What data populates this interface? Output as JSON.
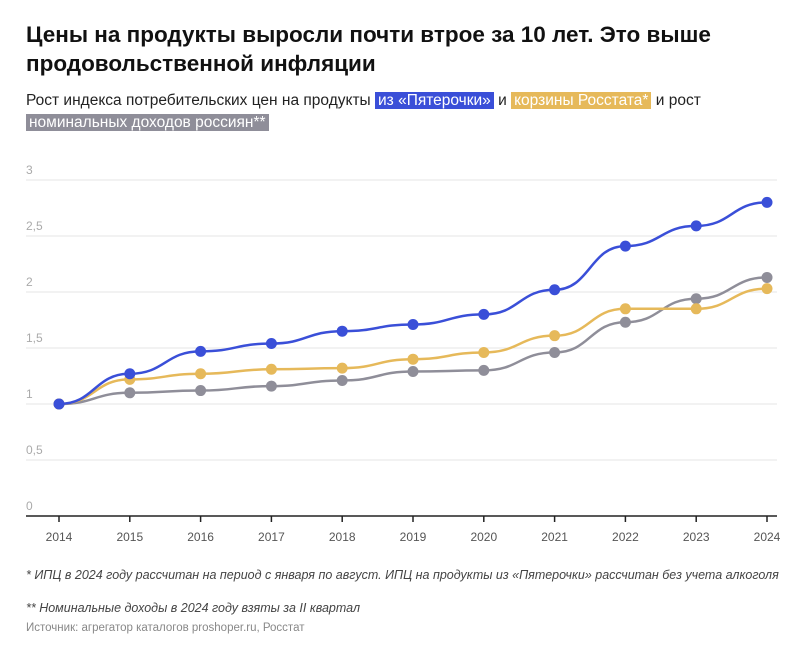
{
  "title": "Цены на продукты выросли почти втрое за 10 лет. Это выше продовольственной инфляции",
  "subtitle": {
    "part1": "Рост индекса потребительских цен на продукты ",
    "hl1": "из «Пятерочки»",
    "part2": " и ",
    "hl2": "корзины Росстата*",
    "part3": " и рост ",
    "hl3": "номинальных доходов россиян**"
  },
  "notes": {
    "n1": "* ИПЦ в 2024 году рассчитан на период с января по август. ИПЦ на продукты из «Пятерочки» рассчитан без учета алкоголя",
    "n2": "** Номинальные доходы в 2024 году взяты за II квартал",
    "source": "Источник: агрегатор каталогов proshoper.ru, Росстат"
  },
  "chart_data": {
    "type": "line",
    "categories": [
      "2014",
      "2015",
      "2016",
      "2017",
      "2018",
      "2019",
      "2020",
      "2021",
      "2022",
      "2023",
      "2024"
    ],
    "y_ticks": [
      "0",
      "0,5",
      "1",
      "1,5",
      "2",
      "2,5",
      "3"
    ],
    "ylim": [
      0,
      3
    ],
    "grid": true,
    "series": [
      {
        "name": "из «Пятерочки»",
        "color": "#3a4fd8",
        "values": [
          1.0,
          1.27,
          1.47,
          1.54,
          1.65,
          1.71,
          1.8,
          2.02,
          2.41,
          2.59,
          2.8
        ]
      },
      {
        "name": "корзины Росстата*",
        "color": "#e6b95a",
        "values": [
          1.0,
          1.22,
          1.27,
          1.31,
          1.32,
          1.4,
          1.46,
          1.61,
          1.85,
          1.85,
          2.03
        ]
      },
      {
        "name": "номинальных доходов россиян**",
        "color": "#8f8e99",
        "values": [
          1.0,
          1.1,
          1.12,
          1.16,
          1.21,
          1.29,
          1.3,
          1.46,
          1.73,
          1.94,
          2.13
        ]
      }
    ]
  }
}
